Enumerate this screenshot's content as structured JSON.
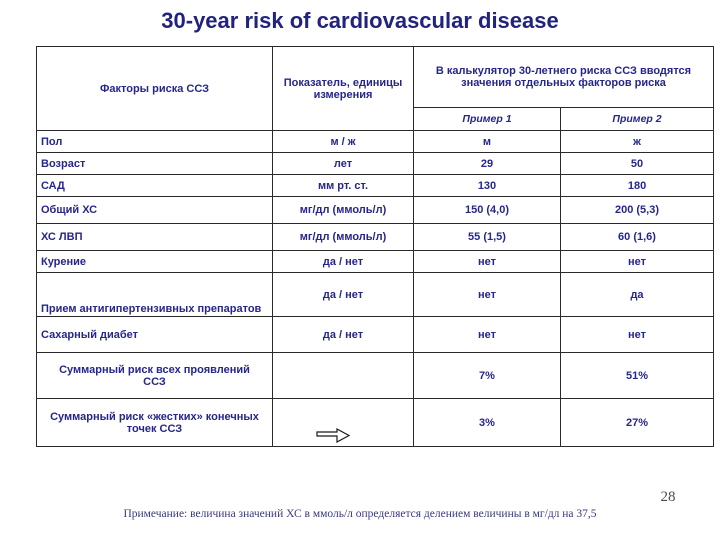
{
  "slide": {
    "title": "30-year risk of cardiovascular disease",
    "page_number": "28",
    "footnote": "Примечание: величина значений ХС в ммоль/л определяется делением величины в мг/дл  на 37,5"
  },
  "colors": {
    "text_accent": "#26268c",
    "table_border": "#2a2a2a",
    "background": "#ffffff"
  },
  "icons": {
    "arrow": "right-block-arrow"
  },
  "table": {
    "header": {
      "col1": "Факторы риска ССЗ",
      "col2": "Показатель, единицы измерения",
      "col3": "В калькулятор 30-летнего риска ССЗ вводятся значения отдельных факторов риска",
      "example1": "Пример 1",
      "example2": "Пример 2"
    },
    "rows": [
      {
        "factor": "Пол",
        "unit": "м / ж",
        "ex1": "м",
        "ex2": "ж"
      },
      {
        "factor": "Возраст",
        "unit": "лет",
        "ex1": "29",
        "ex2": "50"
      },
      {
        "factor": "САД",
        "unit": "мм рт. ст.",
        "ex1": "130",
        "ex2": "180"
      },
      {
        "factor": "Общий ХС",
        "unit": "мг/дл (ммоль/л)",
        "ex1": "150 (4,0)",
        "ex2": "200 (5,3)"
      },
      {
        "factor": "ХС ЛВП",
        "unit": "мг/дл (ммоль/л)",
        "ex1": "55 (1,5)",
        "ex2": "60 (1,6)"
      },
      {
        "factor": "Курение",
        "unit": "да / нет",
        "ex1": "нет",
        "ex2": "нет"
      },
      {
        "factor": "Прием антигипертензивных препаратов",
        "unit": "да / нет",
        "ex1": "нет",
        "ex2": "да"
      },
      {
        "factor": "Сахарный диабет",
        "unit": "да / нет",
        "ex1": "нет",
        "ex2": "нет"
      },
      {
        "factor": "Суммарный риск всех проявлений ССЗ",
        "unit": "",
        "ex1": "7%",
        "ex2": "51%"
      },
      {
        "factor": "Суммарный риск «жестких» конечных точек ССЗ",
        "unit": "",
        "ex1": "3%",
        "ex2": "27%"
      }
    ]
  }
}
